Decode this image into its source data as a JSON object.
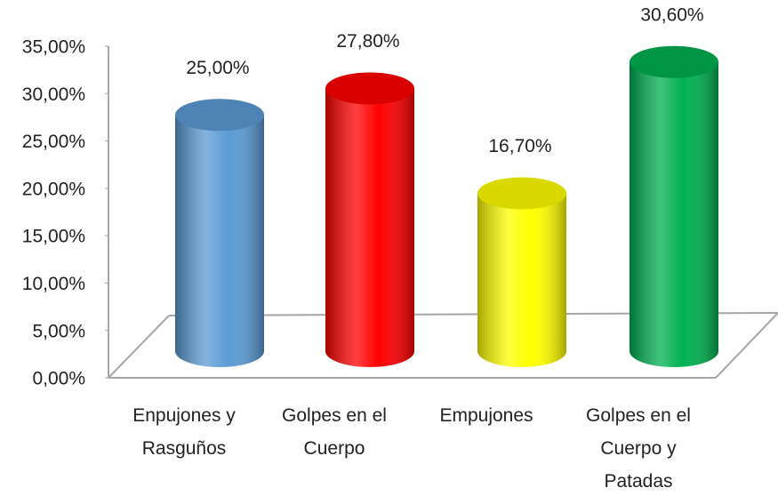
{
  "chart_data": {
    "type": "cylinder",
    "categories": [
      "Enpujones y Rasguños",
      "Golpes en el Cuerpo",
      "Empujones",
      "Golpes en el Cuerpo y Patadas"
    ],
    "values": [
      25,
      27.8,
      16.7,
      30.6
    ],
    "value_labels": [
      "25,00%",
      "27,80%",
      "16,70%",
      "30,60%"
    ],
    "colors": [
      "#5b9bd5",
      "#ff0000",
      "#ffff00",
      "#00b050"
    ],
    "ylim": [
      0,
      35
    ],
    "yticks": [
      {
        "value": 0,
        "label": "0,00%"
      },
      {
        "value": 5,
        "label": "5,00%"
      },
      {
        "value": 10,
        "label": "10,00%"
      },
      {
        "value": 15,
        "label": "15,00%"
      },
      {
        "value": 20,
        "label": "20,00%"
      },
      {
        "value": 25,
        "label": "25,00%"
      },
      {
        "value": 30,
        "label": "30,00%"
      },
      {
        "value": 35,
        "label": "35,00%"
      }
    ],
    "grid": false
  }
}
